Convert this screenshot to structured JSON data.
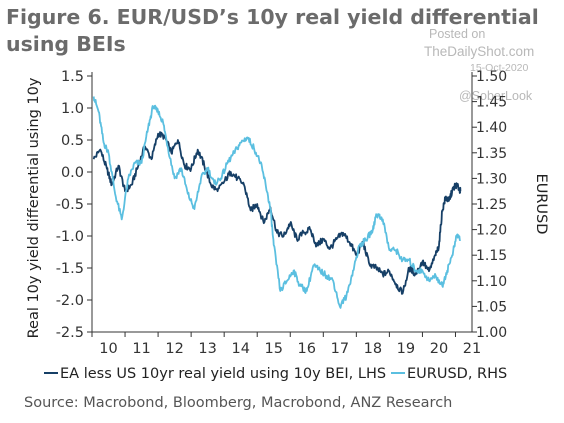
{
  "watermark": {
    "line1": "Posted on",
    "line2": "TheDailyShot.com",
    "line3": "15-Oct-2020",
    "line4": "@SoberLook"
  },
  "source": "Source: Macrobond, Bloomberg, Macrobond, ANZ Research",
  "chart_data": {
    "type": "line",
    "title": "Figure 6. EUR/USD’s 10y real yield differential using BEIs",
    "ylabel_left": "Real 10y yield differential using 10y",
    "ylabel_right": "EURUSD",
    "ylim_left": [
      -2.5,
      1.5
    ],
    "ylim_right": [
      1.0,
      1.5
    ],
    "yticks_left": [
      "1.5",
      "1.0",
      "0.5",
      "0.0",
      "-0.5",
      "-1.0",
      "-1.5",
      "-2.0",
      "-2.5"
    ],
    "yticks_right": [
      "1.50",
      "1.45",
      "1.40",
      "1.35",
      "1.30",
      "1.25",
      "1.20",
      "1.15",
      "1.10",
      "1.05",
      "1.00"
    ],
    "xlim": [
      2009.5,
      2021.0
    ],
    "xticks": [
      "10",
      "11",
      "12",
      "13",
      "14",
      "15",
      "16",
      "17",
      "18",
      "19",
      "20",
      "21"
    ],
    "grid": false,
    "legend_position": "bottom",
    "series": [
      {
        "name": "EA less US 10yr real yield using 10y BEI, LHS",
        "axis": "left",
        "color": "#163f66",
        "x": [
          2009.55,
          2009.75,
          2009.95,
          2010.1,
          2010.3,
          2010.5,
          2010.7,
          2010.9,
          2011.1,
          2011.3,
          2011.5,
          2011.7,
          2011.9,
          2012.1,
          2012.3,
          2012.5,
          2012.7,
          2012.9,
          2013.1,
          2013.3,
          2013.5,
          2013.7,
          2013.9,
          2014.1,
          2014.3,
          2014.5,
          2014.7,
          2014.9,
          2015.1,
          2015.3,
          2015.5,
          2015.7,
          2015.9,
          2016.1,
          2016.3,
          2016.5,
          2016.7,
          2016.9,
          2017.1,
          2017.3,
          2017.5,
          2017.7,
          2017.9,
          2018.1,
          2018.3,
          2018.5,
          2018.7,
          2018.9,
          2019.1,
          2019.3,
          2019.5,
          2019.7,
          2019.9,
          2020.0,
          2020.1,
          2020.2,
          2020.3,
          2020.4,
          2020.5,
          2020.6,
          2020.65
        ],
        "y": [
          0.2,
          0.35,
          0.05,
          -0.2,
          0.1,
          -0.3,
          -0.2,
          0.1,
          0.4,
          0.2,
          0.6,
          0.55,
          0.3,
          0.5,
          0.1,
          0.05,
          0.35,
          0.1,
          -0.2,
          -0.3,
          -0.15,
          0.0,
          -0.1,
          -0.2,
          -0.6,
          -0.5,
          -0.8,
          -0.55,
          -0.95,
          -1.0,
          -0.8,
          -1.05,
          -0.95,
          -0.9,
          -1.15,
          -1.05,
          -1.2,
          -1.05,
          -0.95,
          -1.1,
          -1.3,
          -1.1,
          -1.45,
          -1.5,
          -1.6,
          -1.55,
          -1.75,
          -1.9,
          -1.5,
          -1.6,
          -1.4,
          -1.55,
          -1.3,
          -1.15,
          -0.6,
          -0.4,
          -0.45,
          -0.3,
          -0.2,
          -0.25,
          -0.3
        ]
      },
      {
        "name": "EURUSD, RHS",
        "axis": "right",
        "color": "#5bbfe0",
        "x": [
          2009.55,
          2009.7,
          2009.85,
          2010.0,
          2010.2,
          2010.4,
          2010.6,
          2010.8,
          2011.0,
          2011.2,
          2011.35,
          2011.5,
          2011.65,
          2011.8,
          2012.0,
          2012.2,
          2012.4,
          2012.6,
          2012.8,
          2013.0,
          2013.2,
          2013.4,
          2013.6,
          2013.8,
          2014.0,
          2014.2,
          2014.4,
          2014.6,
          2014.75,
          2014.9,
          2015.0,
          2015.2,
          2015.4,
          2015.6,
          2015.8,
          2016.0,
          2016.2,
          2016.4,
          2016.6,
          2016.8,
          2017.0,
          2017.2,
          2017.4,
          2017.6,
          2017.8,
          2018.0,
          2018.1,
          2018.3,
          2018.5,
          2018.7,
          2018.9,
          2019.1,
          2019.3,
          2019.5,
          2019.7,
          2019.9,
          2020.1,
          2020.25,
          2020.4,
          2020.55,
          2020.65
        ],
        "y": [
          1.46,
          1.43,
          1.37,
          1.35,
          1.27,
          1.22,
          1.3,
          1.33,
          1.33,
          1.4,
          1.44,
          1.43,
          1.41,
          1.36,
          1.3,
          1.32,
          1.27,
          1.24,
          1.3,
          1.32,
          1.29,
          1.3,
          1.33,
          1.35,
          1.37,
          1.38,
          1.36,
          1.33,
          1.29,
          1.24,
          1.17,
          1.08,
          1.1,
          1.12,
          1.09,
          1.08,
          1.13,
          1.12,
          1.11,
          1.1,
          1.05,
          1.07,
          1.12,
          1.17,
          1.18,
          1.2,
          1.23,
          1.22,
          1.16,
          1.16,
          1.14,
          1.14,
          1.12,
          1.12,
          1.1,
          1.11,
          1.09,
          1.12,
          1.15,
          1.19,
          1.18
        ]
      }
    ]
  }
}
